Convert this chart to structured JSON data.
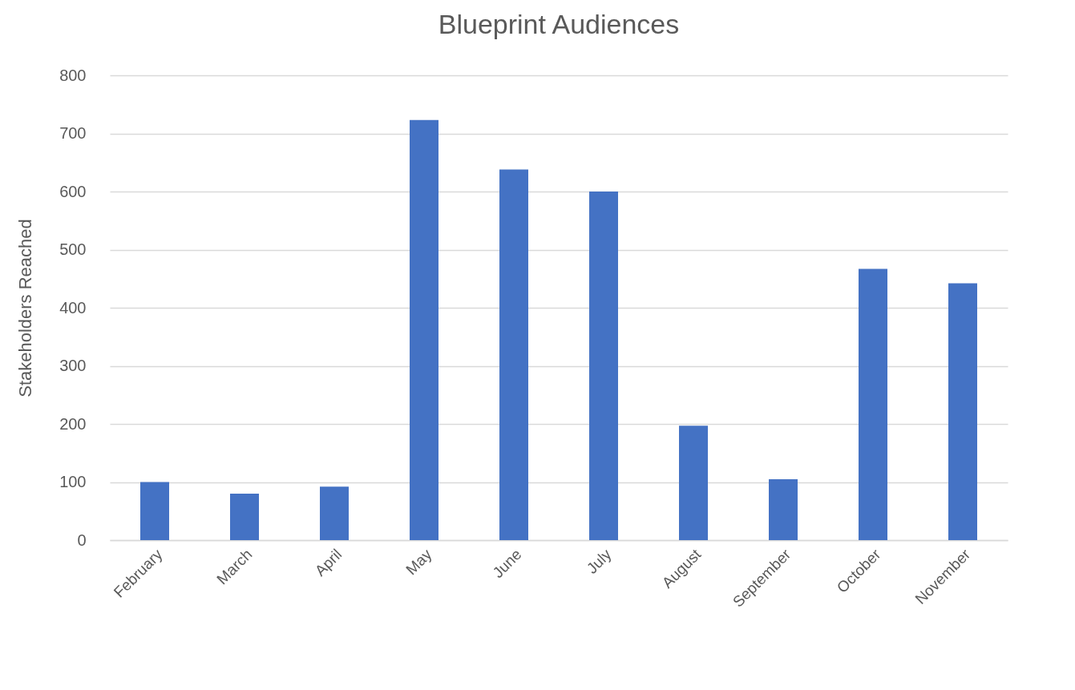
{
  "chart_data": {
    "type": "bar",
    "title": "Blueprint Audiences",
    "ylabel": "Stakeholders Reached",
    "categories": [
      "February",
      "March",
      "April",
      "May",
      "June",
      "July",
      "August",
      "September",
      "October",
      "November"
    ],
    "values": [
      100,
      80,
      92,
      723,
      638,
      600,
      197,
      105,
      467,
      442
    ],
    "color": "#4472c4",
    "ylim": [
      0,
      800
    ],
    "yticks": [
      0,
      100,
      200,
      300,
      400,
      500,
      600,
      700,
      800
    ],
    "grid": "y"
  }
}
